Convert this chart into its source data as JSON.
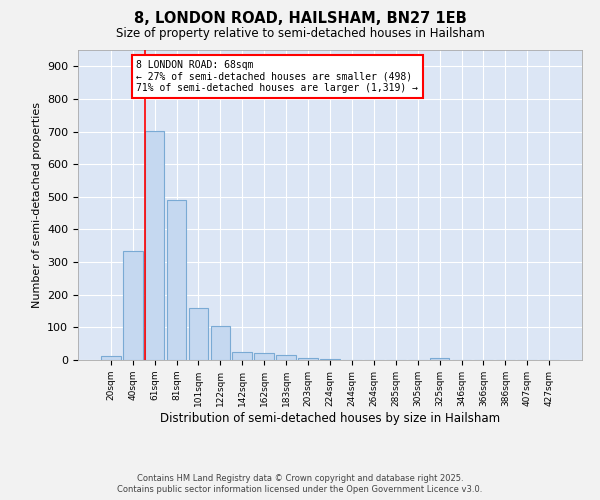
{
  "title1": "8, LONDON ROAD, HAILSHAM, BN27 1EB",
  "title2": "Size of property relative to semi-detached houses in Hailsham",
  "xlabel": "Distribution of semi-detached houses by size in Hailsham",
  "ylabel": "Number of semi-detached properties",
  "categories": [
    "20sqm",
    "40sqm",
    "61sqm",
    "81sqm",
    "101sqm",
    "122sqm",
    "142sqm",
    "162sqm",
    "183sqm",
    "203sqm",
    "224sqm",
    "244sqm",
    "264sqm",
    "285sqm",
    "305sqm",
    "325sqm",
    "346sqm",
    "366sqm",
    "386sqm",
    "407sqm",
    "427sqm"
  ],
  "values": [
    12,
    333,
    703,
    490,
    160,
    105,
    25,
    20,
    15,
    5,
    3,
    0,
    0,
    0,
    0,
    5,
    0,
    0,
    0,
    0,
    0
  ],
  "bar_color": "#c5d8f0",
  "bar_edge_color": "#7aaad4",
  "annotation_text": "8 LONDON ROAD: 68sqm\n← 27% of semi-detached houses are smaller (498)\n71% of semi-detached houses are larger (1,319) →",
  "fig_bg_color": "#f2f2f2",
  "plot_bg_color": "#dce6f5",
  "grid_color": "#ffffff",
  "ylim": [
    0,
    950
  ],
  "yticks": [
    0,
    100,
    200,
    300,
    400,
    500,
    600,
    700,
    800,
    900
  ],
  "footer_line1": "Contains HM Land Registry data © Crown copyright and database right 2025.",
  "footer_line2": "Contains public sector information licensed under the Open Government Licence v3.0."
}
